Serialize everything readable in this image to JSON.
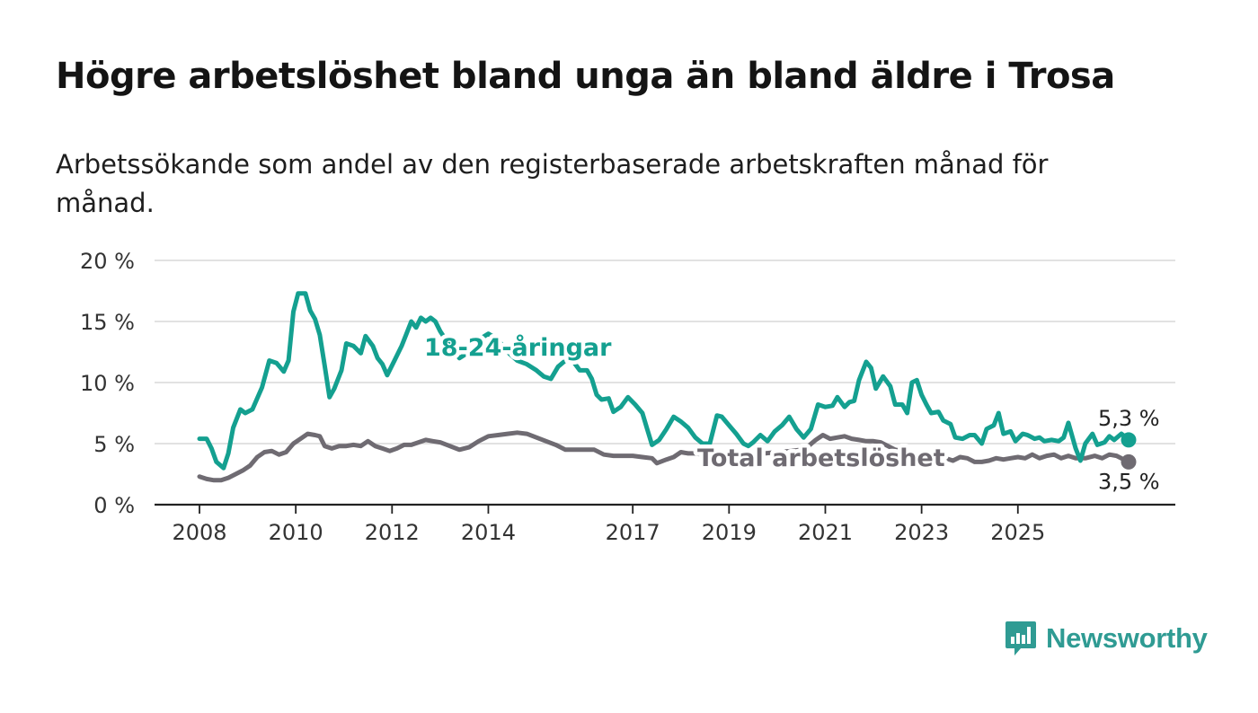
{
  "header": {
    "title": "Högre arbetslöshet bland unga än bland äldre i Trosa",
    "subtitle": "Arbetssökande som andel av den registerbaserade arbetskraften månad för månad."
  },
  "brand": {
    "name": "Newsworthy",
    "icon": "bar-chart-speech-bubble-icon"
  },
  "colors": {
    "youth": "#14a090",
    "total": "#6f6b72",
    "grid": "#d9d9d9",
    "axis": "#222222",
    "text": "#333333"
  },
  "chart_data": {
    "type": "line",
    "ylim": [
      0,
      20
    ],
    "y_ticks": [
      0,
      5,
      10,
      15,
      20
    ],
    "y_tick_labels": [
      "0 %",
      "5 %",
      "10 %",
      "15 %",
      "20 %"
    ],
    "x_ticks": [
      2008,
      2010,
      2012,
      2014,
      2017,
      2019,
      2021,
      2023,
      2025
    ],
    "x_tick_labels": [
      "2008",
      "2010",
      "2012",
      "2014",
      "2017",
      "2019",
      "2021",
      "2023",
      "2025"
    ],
    "grid": true,
    "series": [
      {
        "name": "18-24-åringar",
        "key": "youth",
        "end_label": "5,3 %",
        "points": [
          [
            2008.0,
            5.4
          ],
          [
            2008.15,
            5.4
          ],
          [
            2008.25,
            4.6
          ],
          [
            2008.35,
            3.5
          ],
          [
            2008.5,
            3.0
          ],
          [
            2008.6,
            4.2
          ],
          [
            2008.7,
            6.3
          ],
          [
            2008.85,
            7.8
          ],
          [
            2008.95,
            7.5
          ],
          [
            2009.1,
            7.8
          ],
          [
            2009.3,
            9.6
          ],
          [
            2009.45,
            11.8
          ],
          [
            2009.6,
            11.6
          ],
          [
            2009.75,
            10.9
          ],
          [
            2009.85,
            11.8
          ],
          [
            2009.95,
            15.8
          ],
          [
            2010.05,
            17.3
          ],
          [
            2010.2,
            17.3
          ],
          [
            2010.3,
            15.9
          ],
          [
            2010.4,
            15.2
          ],
          [
            2010.5,
            13.9
          ],
          [
            2010.6,
            11.4
          ],
          [
            2010.7,
            8.8
          ],
          [
            2010.8,
            9.5
          ],
          [
            2010.95,
            11.0
          ],
          [
            2011.05,
            13.2
          ],
          [
            2011.2,
            13.0
          ],
          [
            2011.35,
            12.4
          ],
          [
            2011.45,
            13.8
          ],
          [
            2011.6,
            13.0
          ],
          [
            2011.7,
            12.0
          ],
          [
            2011.8,
            11.5
          ],
          [
            2011.9,
            10.6
          ],
          [
            2012.05,
            11.8
          ],
          [
            2012.2,
            13.0
          ],
          [
            2012.3,
            14.0
          ],
          [
            2012.4,
            15.0
          ],
          [
            2012.5,
            14.5
          ],
          [
            2012.6,
            15.3
          ],
          [
            2012.7,
            15.0
          ],
          [
            2012.8,
            15.3
          ],
          [
            2012.9,
            15.0
          ],
          [
            2013.0,
            14.2
          ],
          [
            2013.2,
            13.0
          ],
          [
            2013.4,
            12.0
          ],
          [
            2013.6,
            12.5
          ],
          [
            2013.8,
            13.5
          ],
          [
            2014.0,
            14.0
          ],
          [
            2014.2,
            13.5
          ],
          [
            2014.4,
            12.5
          ],
          [
            2014.6,
            11.8
          ],
          [
            2014.8,
            11.5
          ],
          [
            2015.0,
            11.0
          ],
          [
            2015.15,
            10.5
          ],
          [
            2015.3,
            10.3
          ],
          [
            2015.45,
            11.3
          ],
          [
            2015.6,
            11.8
          ],
          [
            2015.75,
            11.8
          ],
          [
            2015.9,
            11.0
          ],
          [
            2016.05,
            11.0
          ],
          [
            2016.15,
            10.3
          ],
          [
            2016.25,
            9.0
          ],
          [
            2016.35,
            8.6
          ],
          [
            2016.5,
            8.7
          ],
          [
            2016.6,
            7.6
          ],
          [
            2016.75,
            8.0
          ],
          [
            2016.9,
            8.8
          ],
          [
            2017.05,
            8.2
          ],
          [
            2017.2,
            7.5
          ],
          [
            2017.3,
            6.2
          ],
          [
            2017.4,
            4.9
          ],
          [
            2017.55,
            5.3
          ],
          [
            2017.7,
            6.2
          ],
          [
            2017.85,
            7.2
          ],
          [
            2018.0,
            6.8
          ],
          [
            2018.15,
            6.3
          ],
          [
            2018.3,
            5.5
          ],
          [
            2018.45,
            5.0
          ],
          [
            2018.6,
            5.0
          ],
          [
            2018.75,
            7.3
          ],
          [
            2018.85,
            7.2
          ],
          [
            2019.0,
            6.5
          ],
          [
            2019.15,
            5.8
          ],
          [
            2019.3,
            5.0
          ],
          [
            2019.4,
            4.8
          ],
          [
            2019.5,
            5.1
          ],
          [
            2019.65,
            5.7
          ],
          [
            2019.8,
            5.2
          ],
          [
            2019.95,
            6.0
          ],
          [
            2020.1,
            6.5
          ],
          [
            2020.25,
            7.2
          ],
          [
            2020.4,
            6.2
          ],
          [
            2020.55,
            5.5
          ],
          [
            2020.7,
            6.2
          ],
          [
            2020.85,
            8.2
          ],
          [
            2021.0,
            8.0
          ],
          [
            2021.15,
            8.1
          ],
          [
            2021.25,
            8.8
          ],
          [
            2021.4,
            8.0
          ],
          [
            2021.5,
            8.4
          ],
          [
            2021.6,
            8.5
          ],
          [
            2021.7,
            10.2
          ],
          [
            2021.85,
            11.7
          ],
          [
            2021.95,
            11.2
          ],
          [
            2022.05,
            9.5
          ],
          [
            2022.2,
            10.5
          ],
          [
            2022.35,
            9.7
          ],
          [
            2022.45,
            8.2
          ],
          [
            2022.6,
            8.2
          ],
          [
            2022.7,
            7.5
          ],
          [
            2022.8,
            10.0
          ],
          [
            2022.9,
            10.2
          ],
          [
            2023.0,
            9.0
          ],
          [
            2023.1,
            8.2
          ],
          [
            2023.2,
            7.5
          ],
          [
            2023.35,
            7.6
          ],
          [
            2023.45,
            6.9
          ],
          [
            2023.6,
            6.6
          ],
          [
            2023.7,
            5.5
          ],
          [
            2023.85,
            5.4
          ],
          [
            2024.0,
            5.7
          ],
          [
            2024.1,
            5.7
          ],
          [
            2024.25,
            5.0
          ],
          [
            2024.35,
            6.2
          ],
          [
            2024.5,
            6.5
          ],
          [
            2024.6,
            7.5
          ],
          [
            2024.7,
            5.8
          ],
          [
            2024.85,
            6.0
          ],
          [
            2024.95,
            5.2
          ],
          [
            2025.1,
            5.8
          ],
          [
            2025.2,
            5.7
          ],
          [
            2025.35,
            5.4
          ],
          [
            2025.45,
            5.5
          ],
          [
            2025.55,
            5.2
          ],
          [
            2025.7,
            5.3
          ],
          [
            2025.85,
            5.2
          ],
          [
            2025.95,
            5.5
          ],
          [
            2026.05,
            6.7
          ],
          [
            2026.2,
            4.6
          ],
          [
            2026.3,
            3.6
          ],
          [
            2026.4,
            5.0
          ],
          [
            2026.55,
            5.8
          ],
          [
            2026.65,
            4.9
          ],
          [
            2026.8,
            5.1
          ],
          [
            2026.9,
            5.6
          ],
          [
            2027.0,
            5.3
          ],
          [
            2027.15,
            5.8
          ],
          [
            2027.25,
            5.5
          ],
          [
            2027.3,
            5.3
          ]
        ]
      },
      {
        "name": "Total arbetslöshet",
        "key": "total",
        "end_label": "3,5 %",
        "points": [
          [
            2008.0,
            2.3
          ],
          [
            2008.15,
            2.1
          ],
          [
            2008.3,
            2.0
          ],
          [
            2008.45,
            2.0
          ],
          [
            2008.6,
            2.2
          ],
          [
            2008.75,
            2.5
          ],
          [
            2008.9,
            2.8
          ],
          [
            2009.05,
            3.2
          ],
          [
            2009.2,
            3.9
          ],
          [
            2009.35,
            4.3
          ],
          [
            2009.5,
            4.4
          ],
          [
            2009.65,
            4.1
          ],
          [
            2009.8,
            4.3
          ],
          [
            2009.95,
            5.0
          ],
          [
            2010.1,
            5.4
          ],
          [
            2010.25,
            5.8
          ],
          [
            2010.4,
            5.7
          ],
          [
            2010.5,
            5.6
          ],
          [
            2010.6,
            4.8
          ],
          [
            2010.75,
            4.6
          ],
          [
            2010.9,
            4.8
          ],
          [
            2011.05,
            4.8
          ],
          [
            2011.2,
            4.9
          ],
          [
            2011.35,
            4.8
          ],
          [
            2011.5,
            5.2
          ],
          [
            2011.65,
            4.8
          ],
          [
            2011.8,
            4.6
          ],
          [
            2011.95,
            4.4
          ],
          [
            2012.1,
            4.6
          ],
          [
            2012.25,
            4.9
          ],
          [
            2012.4,
            4.9
          ],
          [
            2012.55,
            5.1
          ],
          [
            2012.7,
            5.3
          ],
          [
            2012.85,
            5.2
          ],
          [
            2013.0,
            5.1
          ],
          [
            2013.2,
            4.8
          ],
          [
            2013.4,
            4.5
          ],
          [
            2013.6,
            4.7
          ],
          [
            2013.8,
            5.2
          ],
          [
            2014.0,
            5.6
          ],
          [
            2014.2,
            5.7
          ],
          [
            2014.4,
            5.8
          ],
          [
            2014.6,
            5.9
          ],
          [
            2014.8,
            5.8
          ],
          [
            2015.0,
            5.5
          ],
          [
            2015.2,
            5.2
          ],
          [
            2015.4,
            4.9
          ],
          [
            2015.6,
            4.5
          ],
          [
            2015.8,
            4.5
          ],
          [
            2016.0,
            4.5
          ],
          [
            2016.2,
            4.5
          ],
          [
            2016.4,
            4.1
          ],
          [
            2016.6,
            4.0
          ],
          [
            2016.8,
            4.0
          ],
          [
            2017.0,
            4.0
          ],
          [
            2017.2,
            3.9
          ],
          [
            2017.4,
            3.8
          ],
          [
            2017.5,
            3.4
          ],
          [
            2017.7,
            3.7
          ],
          [
            2017.85,
            3.9
          ],
          [
            2018.0,
            4.3
          ],
          [
            2018.15,
            4.2
          ],
          [
            2018.3,
            4.2
          ],
          [
            2018.6,
            4.0
          ],
          [
            2019.0,
            3.9
          ],
          [
            2019.5,
            4.1
          ],
          [
            2020.0,
            4.3
          ],
          [
            2020.3,
            4.4
          ],
          [
            2020.5,
            4.5
          ],
          [
            2020.65,
            4.8
          ],
          [
            2020.8,
            5.3
          ],
          [
            2020.95,
            5.7
          ],
          [
            2021.1,
            5.4
          ],
          [
            2021.25,
            5.5
          ],
          [
            2021.4,
            5.6
          ],
          [
            2021.55,
            5.4
          ],
          [
            2021.7,
            5.3
          ],
          [
            2021.85,
            5.2
          ],
          [
            2022.0,
            5.2
          ],
          [
            2022.15,
            5.1
          ],
          [
            2022.3,
            4.8
          ],
          [
            2022.45,
            4.5
          ],
          [
            2022.6,
            4.4
          ],
          [
            2022.75,
            4.2
          ],
          [
            2022.9,
            3.9
          ],
          [
            2023.05,
            3.8
          ],
          [
            2023.2,
            3.7
          ],
          [
            2023.35,
            3.9
          ],
          [
            2023.5,
            3.8
          ],
          [
            2023.65,
            3.6
          ],
          [
            2023.8,
            3.9
          ],
          [
            2023.95,
            3.8
          ],
          [
            2024.1,
            3.5
          ],
          [
            2024.25,
            3.5
          ],
          [
            2024.4,
            3.6
          ],
          [
            2024.55,
            3.8
          ],
          [
            2024.7,
            3.7
          ],
          [
            2024.85,
            3.8
          ],
          [
            2025.0,
            3.9
          ],
          [
            2025.15,
            3.8
          ],
          [
            2025.3,
            4.1
          ],
          [
            2025.45,
            3.8
          ],
          [
            2025.6,
            4.0
          ],
          [
            2025.75,
            4.1
          ],
          [
            2025.9,
            3.8
          ],
          [
            2026.05,
            4.0
          ],
          [
            2026.2,
            3.8
          ],
          [
            2026.4,
            3.8
          ],
          [
            2026.6,
            4.0
          ],
          [
            2026.75,
            3.8
          ],
          [
            2026.9,
            4.1
          ],
          [
            2027.05,
            4.0
          ],
          [
            2027.2,
            3.7
          ],
          [
            2027.3,
            3.5
          ]
        ]
      }
    ]
  }
}
